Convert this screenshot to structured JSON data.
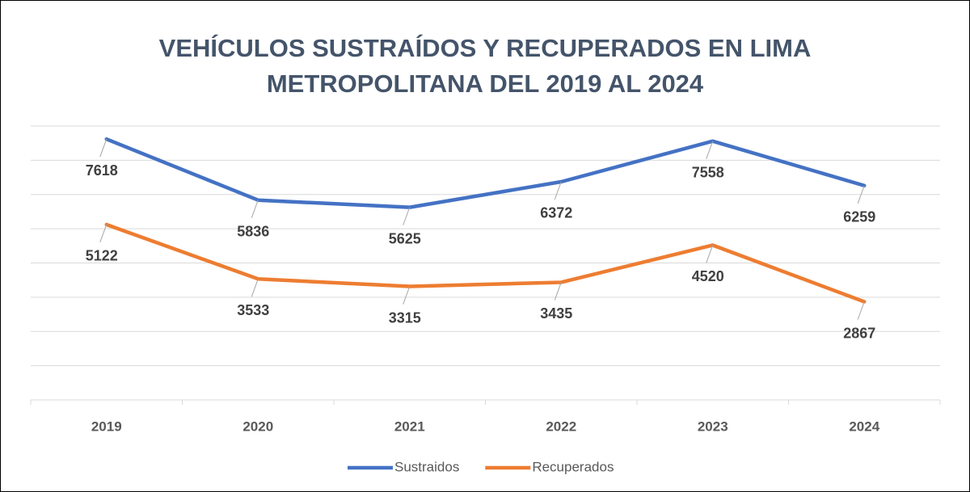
{
  "chart_data": {
    "type": "line",
    "title": "VEHÍCULOS SUSTRAÍDOS Y RECUPERADOS EN LIMA METROPOLITANA DEL 2019 AL 2024",
    "categories": [
      "2019",
      "2020",
      "2021",
      "2022",
      "2023",
      "2024"
    ],
    "series": [
      {
        "name": "Sustraidos",
        "color": "#4472c4",
        "values": [
          7618,
          5836,
          5625,
          6372,
          7558,
          6259
        ]
      },
      {
        "name": "Recuperados",
        "color": "#ed7d31",
        "values": [
          5122,
          3533,
          3315,
          3435,
          4520,
          2867
        ]
      }
    ],
    "ylim": [
      0,
      8000
    ],
    "yticks": [
      0,
      1000,
      2000,
      3000,
      4000,
      5000,
      6000,
      7000,
      8000
    ],
    "grid": true,
    "legend": "bottom"
  }
}
